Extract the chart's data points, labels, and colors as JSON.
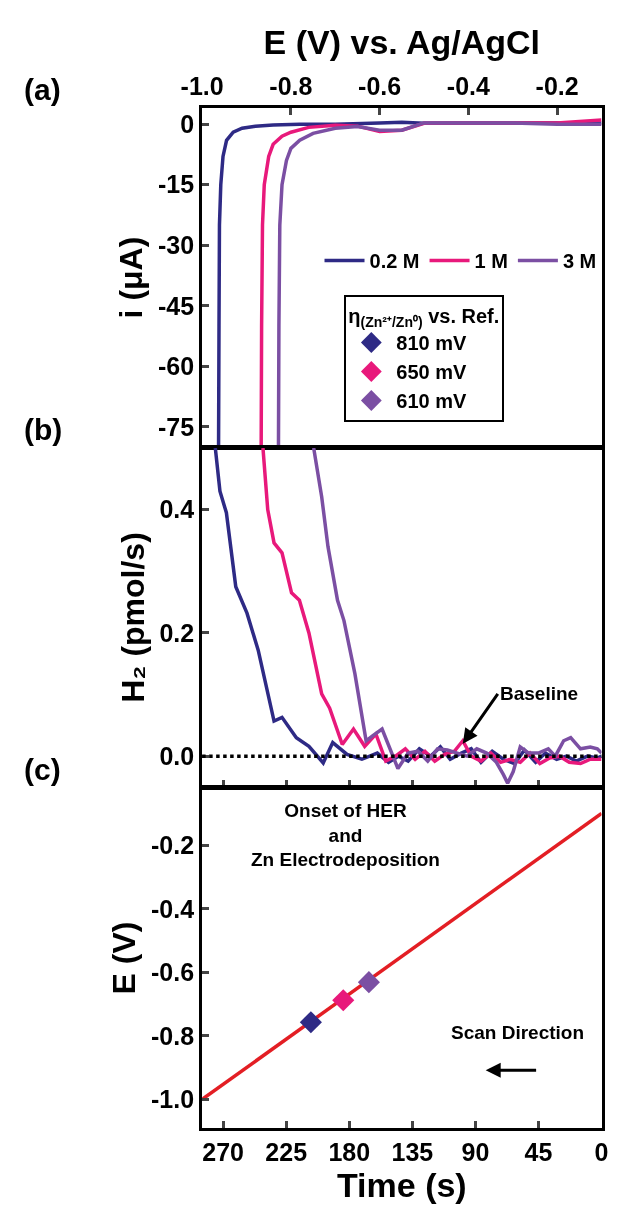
{
  "chart_data": [
    {
      "type": "line",
      "xlabel": "E (V) vs. Ag/AgCl",
      "ylabel": "i (μA)",
      "xlim": [
        -1.0,
        -0.1
      ],
      "xticks": [
        {
          "value": -1.0,
          "label": "-1.0"
        },
        {
          "value": -0.8,
          "label": "-0.8"
        },
        {
          "value": -0.6,
          "label": "-0.6"
        },
        {
          "value": -0.4,
          "label": "-0.4"
        },
        {
          "value": -0.2,
          "label": "-0.2"
        }
      ],
      "ylim": [
        -80,
        4
      ],
      "yticks": [
        0,
        -15,
        -30,
        -45,
        -60,
        -75
      ],
      "legend": "right",
      "grid": false,
      "annotations": [
        "(a)"
      ],
      "series": [
        {
          "name": "0.2 M",
          "color": "#2e2a85",
          "x": [
            -0.963,
            -0.962,
            -0.961,
            -0.958,
            -0.953,
            -0.945,
            -0.93,
            -0.91,
            -0.88,
            -0.84,
            -0.78,
            -0.7,
            -0.6,
            -0.55,
            -0.5,
            -0.4,
            -0.3,
            -0.2,
            -0.15,
            -0.1
          ],
          "values": [
            -80,
            -50,
            -25,
            -15,
            -8,
            -4,
            -2,
            -1,
            -0.5,
            -0.2,
            0,
            0,
            0.3,
            0.5,
            0.2,
            0.3,
            0.3,
            0.3,
            0,
            0.3
          ]
        },
        {
          "name": "1 M",
          "color": "#e8197b",
          "x": [
            -0.867,
            -0.866,
            -0.864,
            -0.86,
            -0.85,
            -0.84,
            -0.82,
            -0.8,
            -0.76,
            -0.7,
            -0.65,
            -0.6,
            -0.55,
            -0.5,
            -0.4,
            -0.3,
            -0.2,
            -0.1
          ],
          "values": [
            -80,
            -50,
            -25,
            -15,
            -8,
            -5,
            -3,
            -2,
            -0.8,
            -0.3,
            -0.5,
            -1.8,
            -1.5,
            0.2,
            0.3,
            0.3,
            0.3,
            1
          ]
        },
        {
          "name": "3 M",
          "color": "#7b4fa3",
          "x": [
            -0.828,
            -0.827,
            -0.825,
            -0.82,
            -0.81,
            -0.8,
            -0.78,
            -0.75,
            -0.7,
            -0.65,
            -0.6,
            -0.55,
            -0.5,
            -0.4,
            -0.3,
            -0.2,
            -0.1
          ],
          "values": [
            -80,
            -50,
            -25,
            -15,
            -9,
            -6,
            -4,
            -2.3,
            -1,
            -0.6,
            -1.5,
            -1.5,
            0.3,
            0.3,
            0.3,
            0,
            0
          ]
        }
      ]
    },
    {
      "type": "line",
      "ylabel": "H₂ (pmol/s)",
      "xlim": [
        285,
        0
      ],
      "xticks": [
        270,
        225,
        180,
        135,
        90,
        45,
        0
      ],
      "ylim": [
        -0.05,
        0.5
      ],
      "yticks": [
        {
          "value": 0,
          "label": "0.0"
        },
        {
          "value": 0.2,
          "label": "0.2"
        },
        {
          "value": 0.4,
          "label": "0.4"
        }
      ],
      "tick_labels": "y",
      "grid": false,
      "ref_lines": [
        {
          "axis": "y",
          "value": 0,
          "color": "#000000",
          "line_style": "dotted"
        }
      ],
      "annotations": [
        "(b)",
        {
          "text": "Baseline",
          "x": 99,
          "y": 0.02
        }
      ],
      "series": [
        {
          "color": "#2e2a85",
          "x": [
            275.6,
            272.3,
            267.7,
            261,
            253,
            245,
            233.7,
            228,
            217.8,
            208.8,
            198.6,
            191.8,
            181.6,
            171,
            160,
            152,
            145,
            138,
            130,
            122,
            115,
            108,
            100,
            93,
            86,
            78,
            70,
            62,
            55,
            47,
            40,
            32,
            25,
            18,
            10,
            3,
            0
          ],
          "values": [
            0.5,
            0.43,
            0.395,
            0.275,
            0.232,
            0.172,
            0.057,
            0.063,
            0.03,
            0.016,
            -0.011,
            0.022,
            0.003,
            -0.005,
            0.005,
            -0.01,
            0.0,
            -0.008,
            0.012,
            0.0,
            0.015,
            -0.005,
            0.005,
            0.012,
            -0.01,
            0.008,
            -0.005,
            -0.012,
            0.01,
            -0.01,
            0.005,
            -0.005,
            0.0,
            -0.008,
            0.0,
            -0.003,
            0.0
          ]
        },
        {
          "color": "#e8197b",
          "x": [
            241.6,
            238.2,
            233.7,
            228,
            221.2,
            215.6,
            208.8,
            199.7,
            194,
            185,
            177,
            169,
            161,
            154,
            147,
            140,
            133,
            126,
            119,
            112,
            105,
            99,
            93,
            86,
            79,
            72,
            65,
            58,
            51,
            44,
            37,
            30,
            23,
            15,
            8,
            0
          ],
          "values": [
            0.5,
            0.4,
            0.346,
            0.33,
            0.265,
            0.253,
            0.2,
            0.101,
            0.078,
            0.019,
            0.044,
            0.016,
            0.036,
            -0.008,
            0.0,
            0.012,
            -0.005,
            0.008,
            -0.008,
            0.003,
            0.008,
            0.025,
            0.0,
            -0.008,
            0.005,
            -0.01,
            -0.005,
            -0.01,
            0.005,
            -0.012,
            -0.003,
            0.0,
            -0.01,
            -0.012,
            -0.005,
            -0.005
          ]
        },
        {
          "color": "#7b4fa3",
          "x": [
            205.4,
            199.7,
            195.2,
            188.4,
            183.8,
            176,
            168,
            163.4,
            156.6,
            145.3,
            138,
            131,
            124,
            117,
            110,
            103,
            96,
            89,
            82,
            75,
            70,
            67,
            63,
            58,
            52,
            45,
            38,
            33,
            27,
            22,
            15,
            8,
            3,
            0
          ],
          "values": [
            0.5,
            0.421,
            0.34,
            0.253,
            0.22,
            0.134,
            0.025,
            0.033,
            0.044,
            -0.02,
            0.005,
            0.008,
            -0.008,
            0.012,
            0.01,
            0.005,
            0.0,
            0.012,
            0.005,
            -0.01,
            -0.03,
            -0.044,
            -0.025,
            0.015,
            0.005,
            0.005,
            0.012,
            0.0,
            0.025,
            0.03,
            0.012,
            0.015,
            0.012,
            0.005
          ]
        }
      ]
    },
    {
      "type": "line",
      "xlabel": "Time (s)",
      "ylabel": "E (V)",
      "xlim": [
        285,
        0
      ],
      "xticks": [
        270,
        225,
        180,
        135,
        90,
        45,
        0
      ],
      "ylim": [
        -1.09,
        -0.02
      ],
      "yticks": [
        {
          "value": -1.0,
          "label": "-1.0"
        },
        {
          "value": -0.8,
          "label": "-0.8"
        },
        {
          "value": -0.6,
          "label": "-0.6"
        },
        {
          "value": -0.4,
          "label": "-0.4"
        },
        {
          "value": -0.2,
          "label": "-0.2"
        }
      ],
      "grid": false,
      "legend": "top",
      "legend_title": "η$_{(Zn²⁺/Zn⁰)}$ vs. Ref.",
      "annotations": [
        "(c)",
        "Onset of HER\nand\nZn Electrodeposition",
        "Scan Direction"
      ],
      "series": [
        {
          "color": "#e31e24",
          "x": [
            285,
            0
          ],
          "values": [
            -1.0,
            -0.1
          ]
        },
        {
          "type": "scatter",
          "marker": "diamond",
          "name": "810 mV",
          "color": "#2e2a85",
          "x": [
            207.4
          ],
          "values": [
            -0.757
          ]
        },
        {
          "type": "scatter",
          "marker": "diamond",
          "name": "650 mV",
          "color": "#e8197b",
          "x": [
            184.3
          ],
          "values": [
            -0.688
          ]
        },
        {
          "type": "scatter",
          "marker": "diamond",
          "name": "610 mV",
          "color": "#7b4fa3",
          "x": [
            166
          ],
          "values": [
            -0.631
          ]
        }
      ]
    }
  ]
}
